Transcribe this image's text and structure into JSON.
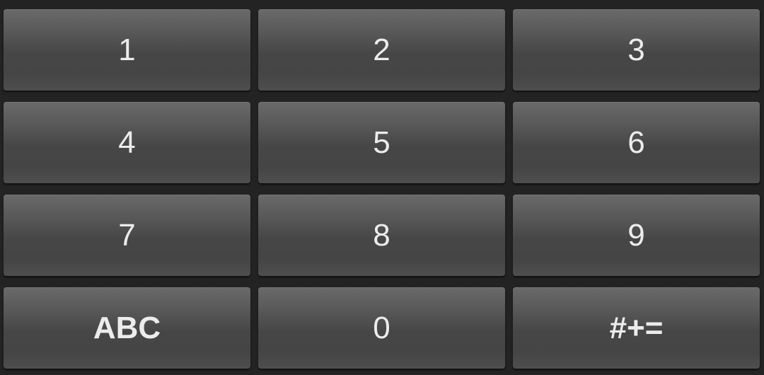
{
  "keypad": {
    "keys": [
      "1",
      "2",
      "3",
      "4",
      "5",
      "6",
      "7",
      "8",
      "9",
      "ABC",
      "0",
      "#+="
    ]
  },
  "colors": {
    "background": "#232323",
    "key": "#4a4a4a",
    "text": "#ececec"
  }
}
